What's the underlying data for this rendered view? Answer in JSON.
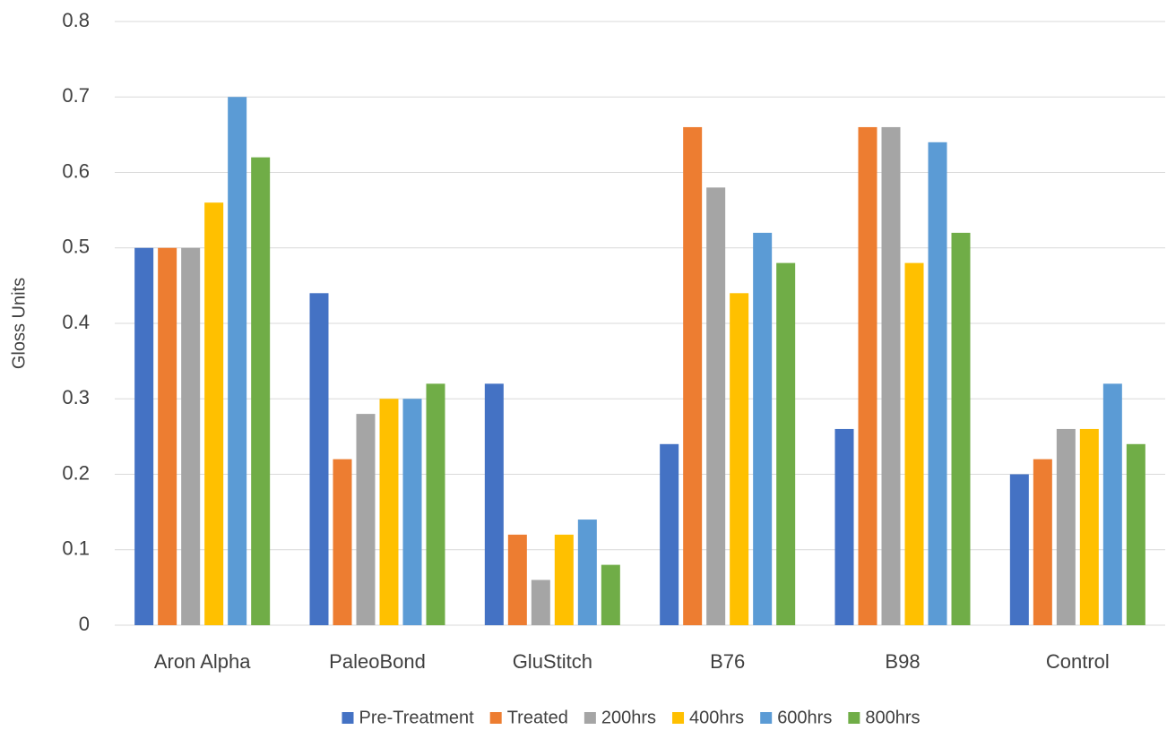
{
  "chart_data": {
    "type": "bar",
    "ylabel": "Gloss Units",
    "categories": [
      "Aron Alpha",
      "PaleoBond",
      "GluStitch",
      "B76",
      "B98",
      "Control"
    ],
    "series": [
      {
        "name": "Pre-Treatment",
        "color": "#4472c4",
        "values": [
          0.5,
          0.44,
          0.32,
          0.24,
          0.26,
          0.2
        ]
      },
      {
        "name": "Treated",
        "color": "#ed7d31",
        "values": [
          0.5,
          0.22,
          0.12,
          0.66,
          0.66,
          0.22
        ]
      },
      {
        "name": "200hrs",
        "color": "#a5a5a5",
        "values": [
          0.5,
          0.28,
          0.06,
          0.58,
          0.66,
          0.26
        ]
      },
      {
        "name": "400hrs",
        "color": "#ffc000",
        "values": [
          0.56,
          0.3,
          0.12,
          0.44,
          0.48,
          0.26
        ]
      },
      {
        "name": "600hrs",
        "color": "#5b9bd5",
        "values": [
          0.7,
          0.3,
          0.14,
          0.52,
          0.64,
          0.32
        ]
      },
      {
        "name": "800hrs",
        "color": "#70ad47",
        "values": [
          0.62,
          0.32,
          0.08,
          0.48,
          0.52,
          0.24
        ]
      }
    ],
    "ylim": [
      0,
      0.8
    ],
    "yticks": [
      0,
      0.1,
      0.2,
      0.3,
      0.4,
      0.5,
      0.6,
      0.7,
      0.8
    ],
    "grid": true,
    "legend": "bottom"
  }
}
